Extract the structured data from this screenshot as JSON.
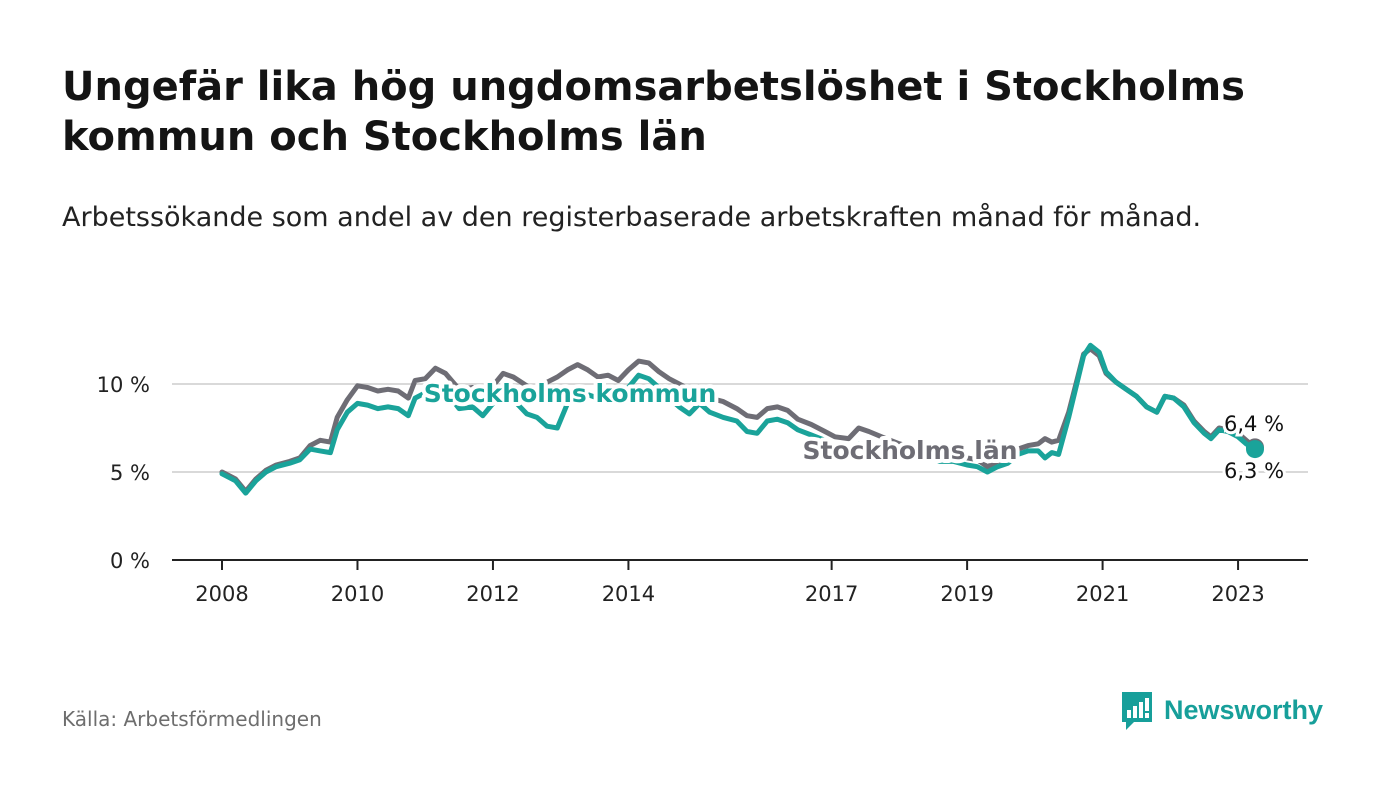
{
  "header": {
    "title": "Ungefär lika hög ungdomsarbetslöshet i Stockholms kommun och Stockholms län",
    "subtitle": "Arbetssökande som andel av den registerbaserade arbetskraften månad för månad."
  },
  "footer": {
    "source": "Källa: Arbetsförmedlingen",
    "brand": "Newsworthy"
  },
  "colors": {
    "kommun": "#1aa39a",
    "lan": "#6e6d75",
    "grid": "#d9d9d9",
    "axis": "#222222"
  },
  "chart_data": {
    "type": "line",
    "title": "Ungefär lika hög ungdomsarbetslöshet i Stockholms kommun och Stockholms län",
    "xlabel": "",
    "ylabel": "",
    "ylim": [
      0,
      13
    ],
    "xlim": [
      2007.25,
      2023.85
    ],
    "yticks": [
      {
        "value": 0,
        "label": "0 %"
      },
      {
        "value": 5,
        "label": "5 %"
      },
      {
        "value": 10,
        "label": "10 %"
      }
    ],
    "xticks": [
      {
        "value": 2008,
        "label": "2008"
      },
      {
        "value": 2010,
        "label": "2010"
      },
      {
        "value": 2012,
        "label": "2012"
      },
      {
        "value": 2014,
        "label": "2014"
      },
      {
        "value": 2017,
        "label": "2017"
      },
      {
        "value": 2019,
        "label": "2019"
      },
      {
        "value": 2021,
        "label": "2021"
      },
      {
        "value": 2023,
        "label": "2023"
      }
    ],
    "series": [
      {
        "name": "Stockholms län",
        "label": "Stockholms län",
        "end_label": "6,4 %",
        "points": [
          [
            2008.0,
            5.0
          ],
          [
            2008.1,
            4.8
          ],
          [
            2008.2,
            4.6
          ],
          [
            2008.35,
            3.9
          ],
          [
            2008.5,
            4.6
          ],
          [
            2008.65,
            5.1
          ],
          [
            2008.8,
            5.4
          ],
          [
            2009.0,
            5.6
          ],
          [
            2009.15,
            5.8
          ],
          [
            2009.3,
            6.5
          ],
          [
            2009.45,
            6.8
          ],
          [
            2009.6,
            6.7
          ],
          [
            2009.7,
            8.1
          ],
          [
            2009.85,
            9.1
          ],
          [
            2010.0,
            9.9
          ],
          [
            2010.15,
            9.8
          ],
          [
            2010.3,
            9.6
          ],
          [
            2010.45,
            9.7
          ],
          [
            2010.6,
            9.6
          ],
          [
            2010.75,
            9.2
          ],
          [
            2010.85,
            10.2
          ],
          [
            2011.0,
            10.3
          ],
          [
            2011.15,
            10.9
          ],
          [
            2011.3,
            10.6
          ],
          [
            2011.5,
            9.7
          ],
          [
            2011.7,
            9.8
          ],
          [
            2011.85,
            9.3
          ],
          [
            2012.0,
            9.9
          ],
          [
            2012.15,
            10.6
          ],
          [
            2012.3,
            10.4
          ],
          [
            2012.5,
            9.9
          ],
          [
            2012.65,
            9.6
          ],
          [
            2012.8,
            10.1
          ],
          [
            2012.95,
            10.4
          ],
          [
            2013.1,
            10.8
          ],
          [
            2013.25,
            11.1
          ],
          [
            2013.4,
            10.8
          ],
          [
            2013.55,
            10.4
          ],
          [
            2013.7,
            10.5
          ],
          [
            2013.85,
            10.2
          ],
          [
            2014.0,
            10.8
          ],
          [
            2014.15,
            11.3
          ],
          [
            2014.3,
            11.2
          ],
          [
            2014.45,
            10.7
          ],
          [
            2014.6,
            10.3
          ],
          [
            2014.75,
            10.0
          ],
          [
            2014.9,
            9.7
          ],
          [
            2015.05,
            9.5
          ],
          [
            2015.2,
            9.2
          ],
          [
            2015.4,
            9.0
          ],
          [
            2015.6,
            8.6
          ],
          [
            2015.75,
            8.2
          ],
          [
            2015.9,
            8.1
          ],
          [
            2016.05,
            8.6
          ],
          [
            2016.2,
            8.7
          ],
          [
            2016.35,
            8.5
          ],
          [
            2016.5,
            8.0
          ],
          [
            2016.7,
            7.7
          ],
          [
            2016.9,
            7.3
          ],
          [
            2017.05,
            7.0
          ],
          [
            2017.25,
            6.9
          ],
          [
            2017.4,
            7.5
          ],
          [
            2017.55,
            7.3
          ],
          [
            2017.8,
            6.9
          ],
          [
            2018.0,
            6.6
          ],
          [
            2018.2,
            6.4
          ],
          [
            2018.4,
            6.3
          ],
          [
            2018.6,
            6.1
          ],
          [
            2018.8,
            6.0
          ],
          [
            2019.0,
            5.8
          ],
          [
            2019.15,
            5.7
          ],
          [
            2019.3,
            5.3
          ],
          [
            2019.45,
            5.6
          ],
          [
            2019.6,
            5.7
          ],
          [
            2019.75,
            6.3
          ],
          [
            2019.9,
            6.5
          ],
          [
            2020.05,
            6.6
          ],
          [
            2020.15,
            6.9
          ],
          [
            2020.25,
            6.7
          ],
          [
            2020.35,
            6.8
          ],
          [
            2020.5,
            8.4
          ],
          [
            2020.6,
            9.9
          ],
          [
            2020.72,
            11.7
          ],
          [
            2020.82,
            12.0
          ],
          [
            2020.95,
            11.6
          ],
          [
            2021.05,
            10.6
          ],
          [
            2021.2,
            10.1
          ],
          [
            2021.35,
            9.7
          ],
          [
            2021.5,
            9.3
          ],
          [
            2021.65,
            8.7
          ],
          [
            2021.8,
            8.4
          ],
          [
            2021.92,
            9.3
          ],
          [
            2022.05,
            9.2
          ],
          [
            2022.2,
            8.8
          ],
          [
            2022.35,
            7.9
          ],
          [
            2022.5,
            7.3
          ],
          [
            2022.6,
            7.0
          ],
          [
            2022.72,
            7.5
          ],
          [
            2022.85,
            7.4
          ],
          [
            2023.0,
            7.2
          ],
          [
            2023.12,
            6.8
          ],
          [
            2023.25,
            6.4
          ]
        ]
      },
      {
        "name": "Stockholms kommun",
        "label": "Stockholms kommun",
        "end_label": "6,3 %",
        "points": [
          [
            2008.0,
            4.9
          ],
          [
            2008.1,
            4.7
          ],
          [
            2008.2,
            4.5
          ],
          [
            2008.35,
            3.8
          ],
          [
            2008.5,
            4.5
          ],
          [
            2008.65,
            5.0
          ],
          [
            2008.8,
            5.3
          ],
          [
            2009.0,
            5.5
          ],
          [
            2009.15,
            5.7
          ],
          [
            2009.3,
            6.3
          ],
          [
            2009.45,
            6.2
          ],
          [
            2009.6,
            6.1
          ],
          [
            2009.7,
            7.4
          ],
          [
            2009.85,
            8.4
          ],
          [
            2010.0,
            8.9
          ],
          [
            2010.15,
            8.8
          ],
          [
            2010.3,
            8.6
          ],
          [
            2010.45,
            8.7
          ],
          [
            2010.6,
            8.6
          ],
          [
            2010.75,
            8.2
          ],
          [
            2010.85,
            9.2
          ],
          [
            2011.0,
            9.5
          ],
          [
            2011.15,
            10.0
          ],
          [
            2011.3,
            9.6
          ],
          [
            2011.5,
            8.6
          ],
          [
            2011.7,
            8.7
          ],
          [
            2011.85,
            8.2
          ],
          [
            2012.0,
            8.9
          ],
          [
            2012.15,
            9.3
          ],
          [
            2012.3,
            9.1
          ],
          [
            2012.5,
            8.3
          ],
          [
            2012.65,
            8.1
          ],
          [
            2012.8,
            7.6
          ],
          [
            2012.95,
            7.5
          ],
          [
            2013.1,
            8.9
          ],
          [
            2013.25,
            9.6
          ],
          [
            2013.4,
            9.4
          ],
          [
            2013.55,
            9.2
          ],
          [
            2013.7,
            9.3
          ],
          [
            2013.85,
            9.0
          ],
          [
            2014.0,
            9.8
          ],
          [
            2014.15,
            10.5
          ],
          [
            2014.3,
            10.3
          ],
          [
            2014.45,
            9.8
          ],
          [
            2014.6,
            9.2
          ],
          [
            2014.75,
            8.7
          ],
          [
            2014.9,
            8.3
          ],
          [
            2015.05,
            8.9
          ],
          [
            2015.2,
            8.4
          ],
          [
            2015.4,
            8.1
          ],
          [
            2015.6,
            7.9
          ],
          [
            2015.75,
            7.3
          ],
          [
            2015.9,
            7.2
          ],
          [
            2016.05,
            7.9
          ],
          [
            2016.2,
            8.0
          ],
          [
            2016.35,
            7.8
          ],
          [
            2016.5,
            7.4
          ],
          [
            2016.7,
            7.1
          ],
          [
            2016.9,
            6.8
          ],
          [
            2017.05,
            6.4
          ],
          [
            2017.25,
            6.3
          ],
          [
            2017.4,
            6.6
          ],
          [
            2017.55,
            6.5
          ],
          [
            2017.8,
            6.3
          ],
          [
            2018.0,
            6.0
          ],
          [
            2018.2,
            5.9
          ],
          [
            2018.4,
            5.9
          ],
          [
            2018.6,
            5.6
          ],
          [
            2018.8,
            5.6
          ],
          [
            2019.0,
            5.4
          ],
          [
            2019.15,
            5.3
          ],
          [
            2019.3,
            5.0
          ],
          [
            2019.45,
            5.3
          ],
          [
            2019.6,
            5.5
          ],
          [
            2019.75,
            6.0
          ],
          [
            2019.9,
            6.2
          ],
          [
            2020.05,
            6.2
          ],
          [
            2020.15,
            5.8
          ],
          [
            2020.25,
            6.1
          ],
          [
            2020.35,
            6.0
          ],
          [
            2020.5,
            8.1
          ],
          [
            2020.6,
            9.7
          ],
          [
            2020.72,
            11.6
          ],
          [
            2020.82,
            12.2
          ],
          [
            2020.95,
            11.8
          ],
          [
            2021.05,
            10.7
          ],
          [
            2021.2,
            10.1
          ],
          [
            2021.35,
            9.7
          ],
          [
            2021.5,
            9.3
          ],
          [
            2021.65,
            8.7
          ],
          [
            2021.8,
            8.4
          ],
          [
            2021.92,
            9.3
          ],
          [
            2022.05,
            9.2
          ],
          [
            2022.2,
            8.7
          ],
          [
            2022.35,
            7.8
          ],
          [
            2022.5,
            7.2
          ],
          [
            2022.6,
            6.9
          ],
          [
            2022.72,
            7.4
          ],
          [
            2022.85,
            7.3
          ],
          [
            2023.0,
            7.0
          ],
          [
            2023.12,
            6.6
          ],
          [
            2023.25,
            6.3
          ]
        ]
      }
    ]
  }
}
